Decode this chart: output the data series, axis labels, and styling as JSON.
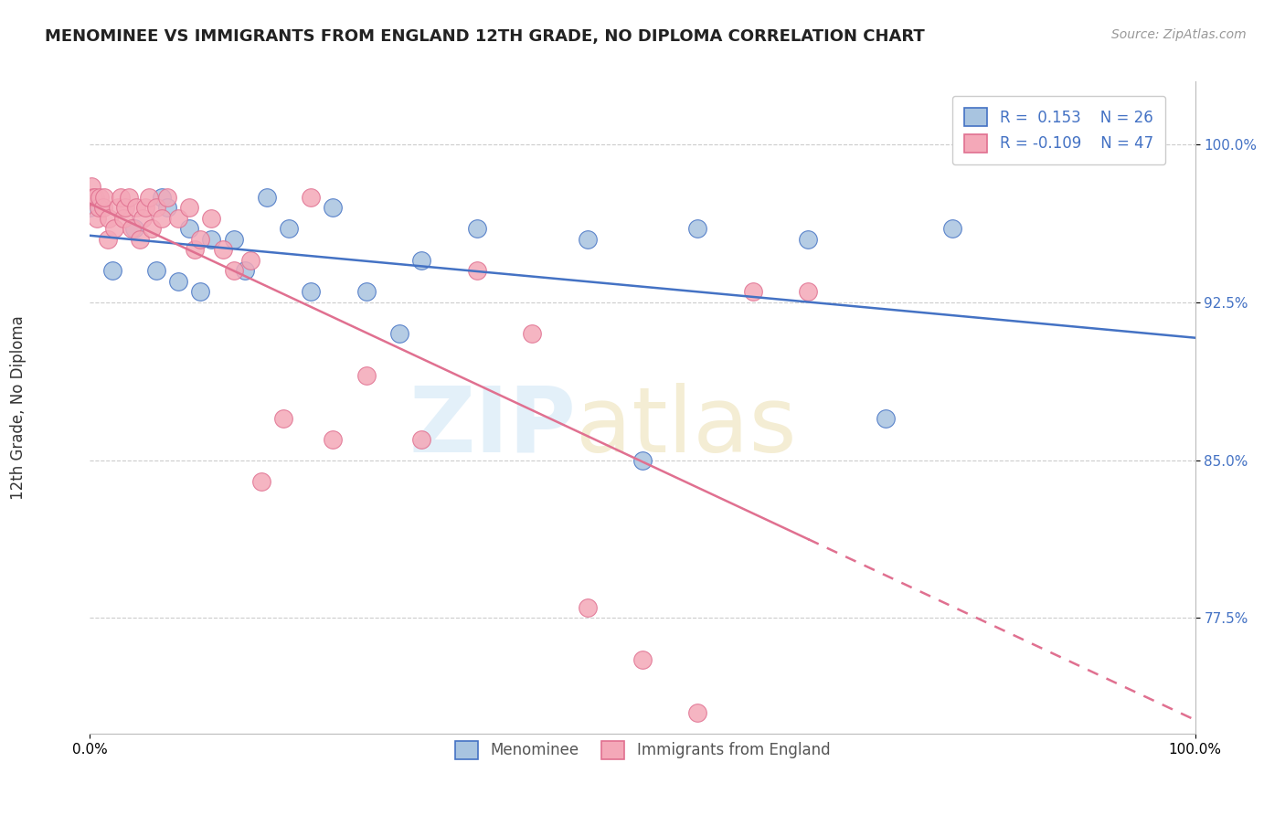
{
  "title": "MENOMINEE VS IMMIGRANTS FROM ENGLAND 12TH GRADE, NO DIPLOMA CORRELATION CHART",
  "source": "Source: ZipAtlas.com",
  "ylabel": "12th Grade, No Diploma",
  "xlim": [
    0.0,
    1.0
  ],
  "ylim": [
    0.72,
    1.03
  ],
  "yticks": [
    0.775,
    0.85,
    0.925,
    1.0
  ],
  "ytick_labels": [
    "77.5%",
    "85.0%",
    "92.5%",
    "100.0%"
  ],
  "xtick_labels": [
    "0.0%",
    "100.0%"
  ],
  "legend_r_blue": "0.153",
  "legend_n_blue": "26",
  "legend_r_pink": "-0.109",
  "legend_n_pink": "47",
  "blue_color": "#a8c4e0",
  "pink_color": "#f4a8b8",
  "line_blue": "#4472c4",
  "line_pink": "#e07090",
  "blue_scatter_x": [
    0.0,
    0.02,
    0.04,
    0.06,
    0.065,
    0.07,
    0.08,
    0.09,
    0.1,
    0.11,
    0.13,
    0.14,
    0.16,
    0.18,
    0.2,
    0.22,
    0.25,
    0.28,
    0.3,
    0.35,
    0.45,
    0.5,
    0.55,
    0.65,
    0.72,
    0.78
  ],
  "blue_scatter_y": [
    0.97,
    0.94,
    0.96,
    0.94,
    0.975,
    0.97,
    0.935,
    0.96,
    0.93,
    0.955,
    0.955,
    0.94,
    0.975,
    0.96,
    0.93,
    0.97,
    0.93,
    0.91,
    0.945,
    0.96,
    0.955,
    0.85,
    0.96,
    0.955,
    0.87,
    0.96
  ],
  "pink_scatter_x": [
    0.001,
    0.003,
    0.005,
    0.006,
    0.008,
    0.009,
    0.012,
    0.013,
    0.016,
    0.017,
    0.022,
    0.025,
    0.028,
    0.03,
    0.032,
    0.035,
    0.038,
    0.042,
    0.045,
    0.048,
    0.05,
    0.053,
    0.056,
    0.06,
    0.065,
    0.07,
    0.08,
    0.09,
    0.095,
    0.1,
    0.11,
    0.12,
    0.13,
    0.145,
    0.155,
    0.175,
    0.2,
    0.22,
    0.25,
    0.3,
    0.35,
    0.4,
    0.45,
    0.5,
    0.55,
    0.6,
    0.65
  ],
  "pink_scatter_y": [
    0.98,
    0.975,
    0.975,
    0.965,
    0.97,
    0.975,
    0.97,
    0.975,
    0.955,
    0.965,
    0.96,
    0.97,
    0.975,
    0.965,
    0.97,
    0.975,
    0.96,
    0.97,
    0.955,
    0.965,
    0.97,
    0.975,
    0.96,
    0.97,
    0.965,
    0.975,
    0.965,
    0.97,
    0.95,
    0.955,
    0.965,
    0.95,
    0.94,
    0.945,
    0.84,
    0.87,
    0.975,
    0.86,
    0.89,
    0.86,
    0.94,
    0.91,
    0.78,
    0.755,
    0.73,
    0.93,
    0.93
  ]
}
